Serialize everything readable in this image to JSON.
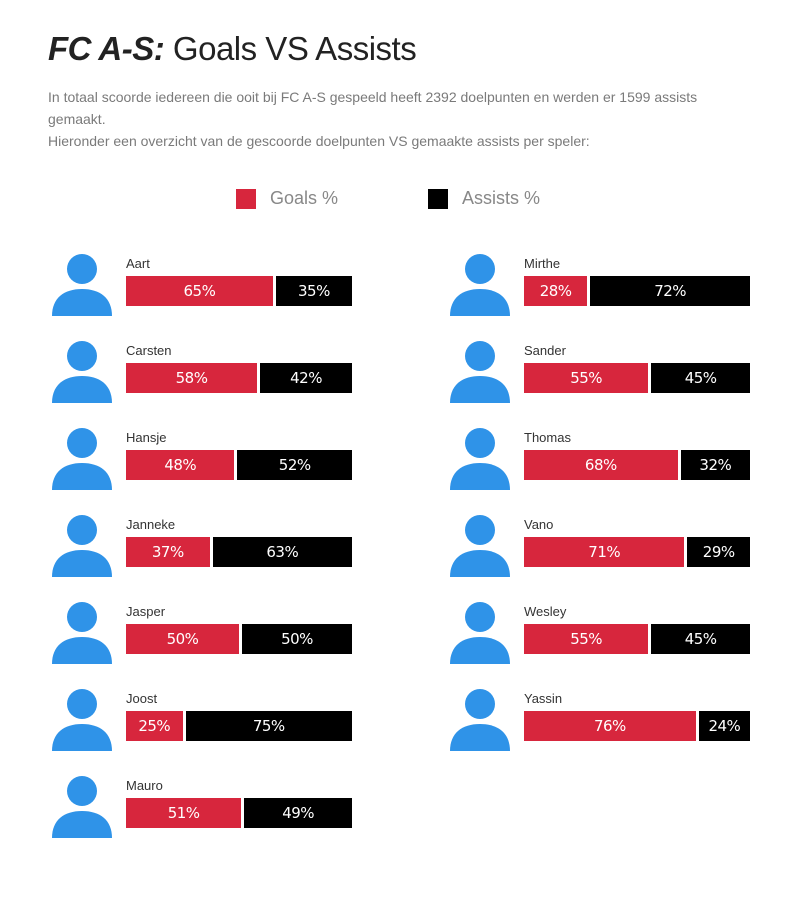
{
  "header": {
    "brand": "FC A-S:",
    "title_rest": " Goals VS Assists",
    "intro_line1": "In totaal scoorde iedereen die ooit bij FC A-S gespeeld heeft 2392 doelpunten en werden er 1599 assists gemaakt.",
    "intro_line2": "Hieronder een overzicht van de gescoorde doelpunten VS gemaakte assists per speler:"
  },
  "legend": {
    "goals_label": "Goals %",
    "assists_label": "Assists %"
  },
  "colors": {
    "goals": "#d7263d",
    "assists": "#000000",
    "avatar": "#2f93e8"
  },
  "icons": {
    "avatar": "person-icon"
  },
  "chart_data": {
    "type": "bar",
    "stacked": true,
    "orientation": "horizontal",
    "unit": "%",
    "series_names": [
      "Goals %",
      "Assists %"
    ],
    "players": [
      {
        "name": "Aart",
        "goals": 65,
        "assists": 35,
        "goals_label": "65%",
        "assists_label": "35%"
      },
      {
        "name": "Carsten",
        "goals": 58,
        "assists": 42,
        "goals_label": "58%",
        "assists_label": "42%"
      },
      {
        "name": "Hansje",
        "goals": 48,
        "assists": 52,
        "goals_label": "48%",
        "assists_label": "52%"
      },
      {
        "name": "Janneke",
        "goals": 37,
        "assists": 63,
        "goals_label": "37%",
        "assists_label": "63%"
      },
      {
        "name": "Jasper",
        "goals": 50,
        "assists": 50,
        "goals_label": "50%",
        "assists_label": "50%"
      },
      {
        "name": "Joost",
        "goals": 25,
        "assists": 75,
        "goals_label": "25%",
        "assists_label": "75%"
      },
      {
        "name": "Mauro",
        "goals": 51,
        "assists": 49,
        "goals_label": "51%",
        "assists_label": "49%"
      },
      {
        "name": "Mirthe",
        "goals": 28,
        "assists": 72,
        "goals_label": "28%",
        "assists_label": "72%"
      },
      {
        "name": "Sander",
        "goals": 55,
        "assists": 45,
        "goals_label": "55%",
        "assists_label": "45%"
      },
      {
        "name": "Thomas",
        "goals": 68,
        "assists": 32,
        "goals_label": "68%",
        "assists_label": "32%"
      },
      {
        "name": "Vano",
        "goals": 71,
        "assists": 29,
        "goals_label": "71%",
        "assists_label": "29%"
      },
      {
        "name": "Wesley",
        "goals": 55,
        "assists": 45,
        "goals_label": "55%",
        "assists_label": "45%"
      },
      {
        "name": "Yassin",
        "goals": 76,
        "assists": 24,
        "goals_label": "76%",
        "assists_label": "24%"
      }
    ]
  }
}
